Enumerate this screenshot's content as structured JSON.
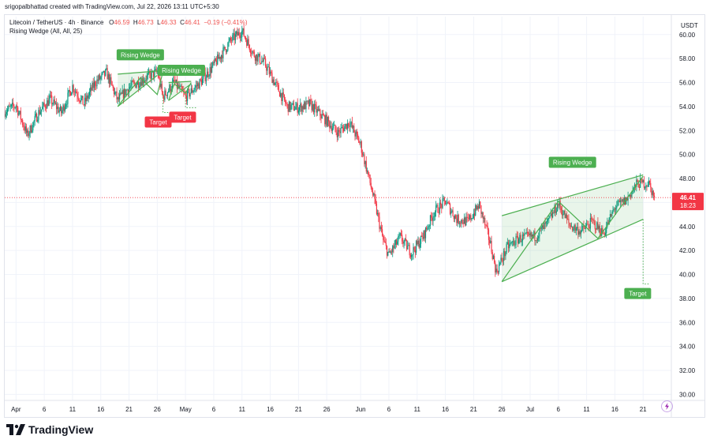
{
  "caption": "srigopalbhattad created with TradingView.com, Jul 22, 2026 13:11 UTC+5:30",
  "legend": {
    "symbol": "Litecoin / TetherUS · 4h · Binance",
    "o_label": "O",
    "o": "46.59",
    "h_label": "H",
    "h": "46.73",
    "l_label": "L",
    "l": "46.33",
    "c_label": "C",
    "c": "46.41",
    "change": "−0.19 (−0.41%)",
    "indicator": "Rising Wedge (All, All, 25)"
  },
  "brand": "TradingView",
  "colors": {
    "up": "#089981",
    "down": "#f23645",
    "pattern": "#4caf50",
    "target": "#f23645",
    "price_label": "#f23645",
    "grid": "#f0f3fa"
  },
  "chart_data": {
    "type": "candlestick",
    "currency": "USDT",
    "ylim": [
      29.5,
      61.5
    ],
    "y_ticks": [
      "30.00",
      "32.00",
      "34.00",
      "36.00",
      "38.00",
      "40.00",
      "42.00",
      "44.00",
      "46.00",
      "48.00",
      "50.00",
      "52.00",
      "54.00",
      "56.00",
      "58.00",
      "60.00"
    ],
    "x_range": [
      "2026-03-30",
      "2026-07-26"
    ],
    "x_ticks": [
      {
        "date": "2026-04-01",
        "label": "Apr"
      },
      {
        "date": "2026-04-06",
        "label": "6"
      },
      {
        "date": "2026-04-11",
        "label": "11"
      },
      {
        "date": "2026-04-16",
        "label": "16"
      },
      {
        "date": "2026-04-21",
        "label": "21"
      },
      {
        "date": "2026-04-26",
        "label": "26"
      },
      {
        "date": "2026-05-01",
        "label": "May"
      },
      {
        "date": "2026-05-06",
        "label": "6"
      },
      {
        "date": "2026-05-11",
        "label": "11"
      },
      {
        "date": "2026-05-16",
        "label": "16"
      },
      {
        "date": "2026-05-21",
        "label": "21"
      },
      {
        "date": "2026-05-26",
        "label": "26"
      },
      {
        "date": "2026-06-01",
        "label": "Jun"
      },
      {
        "date": "2026-06-06",
        "label": "6"
      },
      {
        "date": "2026-06-11",
        "label": "11"
      },
      {
        "date": "2026-06-16",
        "label": "16"
      },
      {
        "date": "2026-06-21",
        "label": "21"
      },
      {
        "date": "2026-06-26",
        "label": "26"
      },
      {
        "date": "2026-07-01",
        "label": "Jul"
      },
      {
        "date": "2026-07-06",
        "label": "6"
      },
      {
        "date": "2026-07-11",
        "label": "11"
      },
      {
        "date": "2026-07-16",
        "label": "16"
      },
      {
        "date": "2026-07-21",
        "label": "21"
      }
    ],
    "candles_per_day": 6,
    "path": [
      {
        "date": "2026-03-30",
        "price": 53.6
      },
      {
        "date": "2026-04-01",
        "price": 54.1
      },
      {
        "date": "2026-04-03",
        "price": 51.6
      },
      {
        "date": "2026-04-05",
        "price": 53.5
      },
      {
        "date": "2026-04-07",
        "price": 54.6
      },
      {
        "date": "2026-04-09",
        "price": 53.5
      },
      {
        "date": "2026-04-11",
        "price": 55.7
      },
      {
        "date": "2026-04-13",
        "price": 54.2
      },
      {
        "date": "2026-04-15",
        "price": 56.0
      },
      {
        "date": "2026-04-17",
        "price": 56.8
      },
      {
        "date": "2026-04-19",
        "price": 54.5
      },
      {
        "date": "2026-04-21",
        "price": 55.6
      },
      {
        "date": "2026-04-24",
        "price": 56.4
      },
      {
        "date": "2026-04-26",
        "price": 56.9
      },
      {
        "date": "2026-04-27",
        "price": 54.8
      },
      {
        "date": "2026-04-29",
        "price": 56.0
      },
      {
        "date": "2026-05-01",
        "price": 54.8
      },
      {
        "date": "2026-05-04",
        "price": 56.2
      },
      {
        "date": "2026-05-07",
        "price": 58.1
      },
      {
        "date": "2026-05-09",
        "price": 59.5
      },
      {
        "date": "2026-05-11",
        "price": 60.3
      },
      {
        "date": "2026-05-13",
        "price": 58.4
      },
      {
        "date": "2026-05-15",
        "price": 57.6
      },
      {
        "date": "2026-05-17",
        "price": 55.8
      },
      {
        "date": "2026-05-19",
        "price": 54.0
      },
      {
        "date": "2026-05-21",
        "price": 53.9
      },
      {
        "date": "2026-05-23",
        "price": 54.2
      },
      {
        "date": "2026-05-26",
        "price": 52.8
      },
      {
        "date": "2026-05-28",
        "price": 51.8
      },
      {
        "date": "2026-05-30",
        "price": 52.7
      },
      {
        "date": "2026-06-01",
        "price": 50.8
      },
      {
        "date": "2026-06-03",
        "price": 47.0
      },
      {
        "date": "2026-06-05",
        "price": 42.8
      },
      {
        "date": "2026-06-06",
        "price": 41.6
      },
      {
        "date": "2026-06-08",
        "price": 43.1
      },
      {
        "date": "2026-06-10",
        "price": 41.8
      },
      {
        "date": "2026-06-12",
        "price": 43.1
      },
      {
        "date": "2026-06-14",
        "price": 45.2
      },
      {
        "date": "2026-06-16",
        "price": 46.1
      },
      {
        "date": "2026-06-18",
        "price": 44.6
      },
      {
        "date": "2026-06-20",
        "price": 44.4
      },
      {
        "date": "2026-06-22",
        "price": 45.8
      },
      {
        "date": "2026-06-24",
        "price": 42.5
      },
      {
        "date": "2026-06-25",
        "price": 40.2
      },
      {
        "date": "2026-06-27",
        "price": 42.3
      },
      {
        "date": "2026-06-29",
        "price": 43.0
      },
      {
        "date": "2026-07-02",
        "price": 43.2
      },
      {
        "date": "2026-07-04",
        "price": 44.2
      },
      {
        "date": "2026-07-06",
        "price": 45.9
      },
      {
        "date": "2026-07-08",
        "price": 44.1
      },
      {
        "date": "2026-07-10",
        "price": 43.6
      },
      {
        "date": "2026-07-12",
        "price": 44.4
      },
      {
        "date": "2026-07-14",
        "price": 43.4
      },
      {
        "date": "2026-07-16",
        "price": 45.6
      },
      {
        "date": "2026-07-18",
        "price": 46.2
      },
      {
        "date": "2026-07-20",
        "price": 47.6
      },
      {
        "date": "2026-07-22",
        "price": 47.6
      },
      {
        "date": "2026-07-23",
        "price": 46.41
      }
    ],
    "last_price": {
      "value": 46.41,
      "label": "46.41",
      "countdown": "18:23"
    },
    "patterns": [
      {
        "label": "Rising Wedge",
        "upper": [
          {
            "date": "2026-04-19",
            "price": 56.7
          },
          {
            "date": "2026-04-27",
            "price": 57.0
          }
        ],
        "lower": [
          {
            "date": "2026-04-19",
            "price": 54.0
          },
          {
            "date": "2026-04-26",
            "price": 56.6
          }
        ],
        "zigzag": [
          {
            "date": "2026-04-19",
            "price": 54.0
          },
          {
            "date": "2026-04-23",
            "price": 56.4
          },
          {
            "date": "2026-04-26",
            "price": 55.0
          },
          {
            "date": "2026-04-27",
            "price": 56.9
          }
        ],
        "target": {
          "label": "Target",
          "from": {
            "date": "2026-04-27",
            "price": 55.0
          },
          "to": {
            "date": "2026-04-28",
            "price": 53.5
          }
        }
      },
      {
        "label": "Rising Wedge",
        "upper": [
          {
            "date": "2026-04-28",
            "price": 56.0
          },
          {
            "date": "2026-05-02",
            "price": 56.1
          }
        ],
        "lower": [
          {
            "date": "2026-04-28",
            "price": 54.5
          },
          {
            "date": "2026-05-02",
            "price": 55.9
          }
        ],
        "zigzag": [
          {
            "date": "2026-04-28",
            "price": 54.5
          },
          {
            "date": "2026-04-29",
            "price": 55.9
          },
          {
            "date": "2026-05-01",
            "price": 55.1
          },
          {
            "date": "2026-05-02",
            "price": 56.0
          }
        ],
        "target": {
          "label": "Target",
          "from": {
            "date": "2026-05-01",
            "price": 55.2
          },
          "to": {
            "date": "2026-05-03",
            "price": 53.9
          }
        }
      },
      {
        "label": "Rising Wedge",
        "upper": [
          {
            "date": "2026-06-26",
            "price": 44.9
          },
          {
            "date": "2026-07-21",
            "price": 48.3
          }
        ],
        "lower": [
          {
            "date": "2026-06-26",
            "price": 39.4
          },
          {
            "date": "2026-07-21",
            "price": 44.6
          }
        ],
        "zigzag": [
          {
            "date": "2026-06-26",
            "price": 39.4
          },
          {
            "date": "2026-07-06",
            "price": 46.1
          },
          {
            "date": "2026-07-13",
            "price": 43.0
          },
          {
            "date": "2026-07-21",
            "price": 48.2
          }
        ],
        "target": {
          "label": "Target",
          "from": {
            "date": "2026-07-21",
            "price": 44.6
          },
          "to": {
            "date": "2026-07-22",
            "price": 39.2
          }
        }
      }
    ]
  }
}
